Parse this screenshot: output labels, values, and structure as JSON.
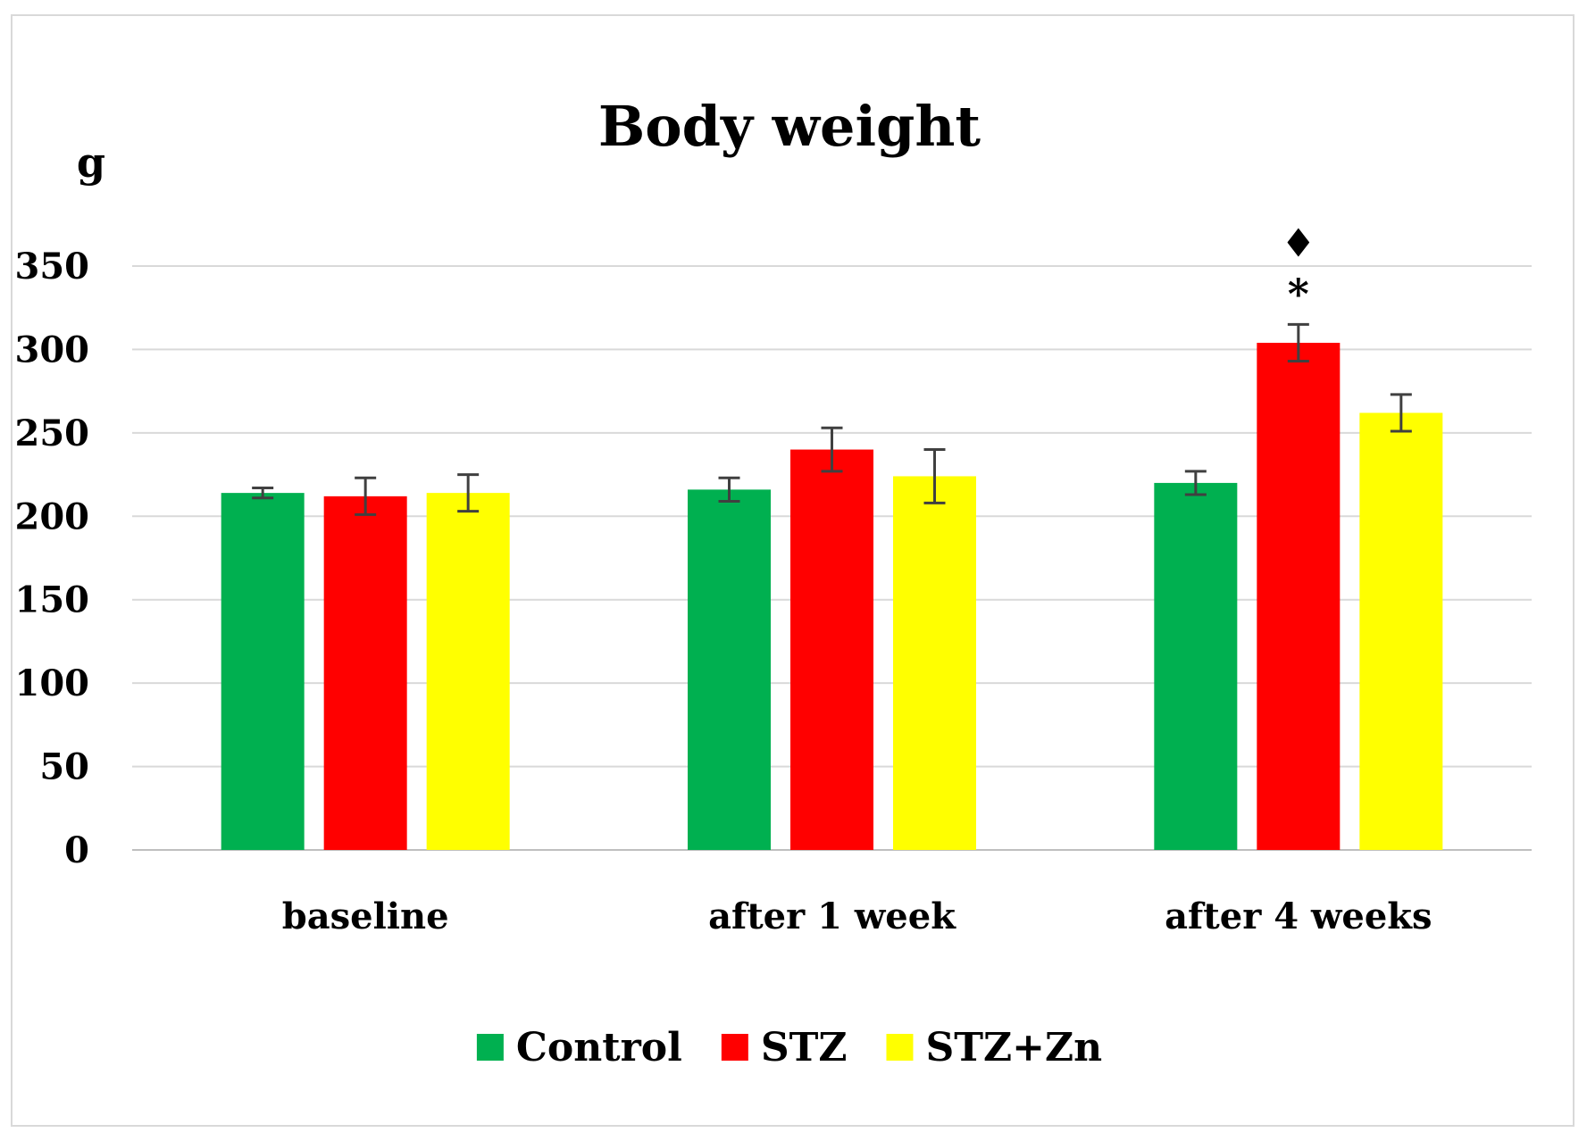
{
  "chart_data": {
    "type": "bar",
    "title": "Body weight",
    "ylabel": "g",
    "xlabel": "",
    "ylim": [
      0,
      350
    ],
    "yticks": [
      0,
      50,
      100,
      150,
      200,
      250,
      300,
      350
    ],
    "grid": true,
    "legend_position": "bottom",
    "categories": [
      "baseline",
      "after 1 week",
      "after 4 weeks"
    ],
    "series": [
      {
        "name": "Control",
        "color": "#00b050",
        "values": [
          214,
          216,
          220
        ],
        "errors": [
          3,
          7,
          7
        ]
      },
      {
        "name": "STZ",
        "color": "#ff0000",
        "values": [
          212,
          240,
          304
        ],
        "errors": [
          11,
          13,
          11
        ]
      },
      {
        "name": "STZ+Zn",
        "color": "#ffff00",
        "values": [
          214,
          224,
          262
        ],
        "errors": [
          11,
          16,
          11
        ]
      }
    ],
    "annotations": [
      {
        "category": "after 4 weeks",
        "series": "STZ",
        "symbols": [
          "♦",
          "*"
        ]
      }
    ]
  }
}
